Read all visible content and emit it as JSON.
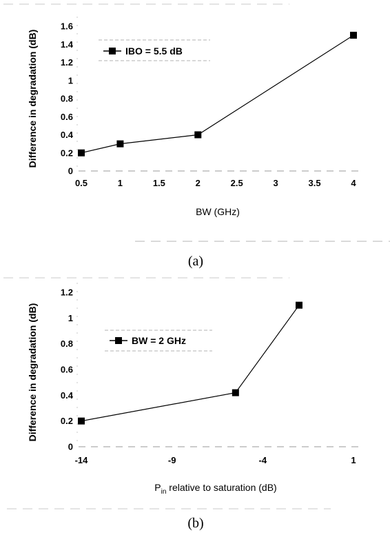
{
  "chart_data": [
    {
      "type": "line",
      "caption": "(a)",
      "ylabel": "Difference in degradation (dB)",
      "xlabel": "BW (GHz)",
      "xlabel_sub": "",
      "xlabel_rest": "",
      "x_ticks": [
        "0.5",
        "1",
        "1.5",
        "2",
        "2.5",
        "3",
        "3.5",
        "4"
      ],
      "y_ticks": [
        "0",
        "0.2",
        "0.4",
        "0.6",
        "0.8",
        "1",
        "1.2",
        "1.4",
        "1.6"
      ],
      "xlim": [
        0.5,
        4
      ],
      "ylim": [
        0,
        1.6
      ],
      "grid": false,
      "legend_position": "top-left",
      "series": [
        {
          "name": "IBO = 5.5 dB",
          "x": [
            0.5,
            1,
            2,
            4
          ],
          "y": [
            0.2,
            0.3,
            0.4,
            1.5
          ],
          "color": "#000000",
          "marker": "square"
        }
      ]
    },
    {
      "type": "line",
      "caption": "(b)",
      "ylabel": "Difference in degradation (dB)",
      "xlabel": "P",
      "xlabel_sub": "in",
      "xlabel_rest": " relative to saturation (dB)",
      "x_ticks": [
        "-14",
        "-9",
        "-4",
        "1"
      ],
      "y_ticks": [
        "0",
        "0.2",
        "0.4",
        "0.6",
        "0.8",
        "1",
        "1.2"
      ],
      "xlim": [
        -14,
        1
      ],
      "ylim": [
        0,
        1.2
      ],
      "grid": false,
      "legend_position": "top-left",
      "series": [
        {
          "name": "BW = 2 GHz",
          "x": [
            -14,
            -5.5,
            -2
          ],
          "y": [
            0.2,
            0.42,
            1.1
          ],
          "color": "#000000",
          "marker": "square"
        }
      ]
    }
  ]
}
